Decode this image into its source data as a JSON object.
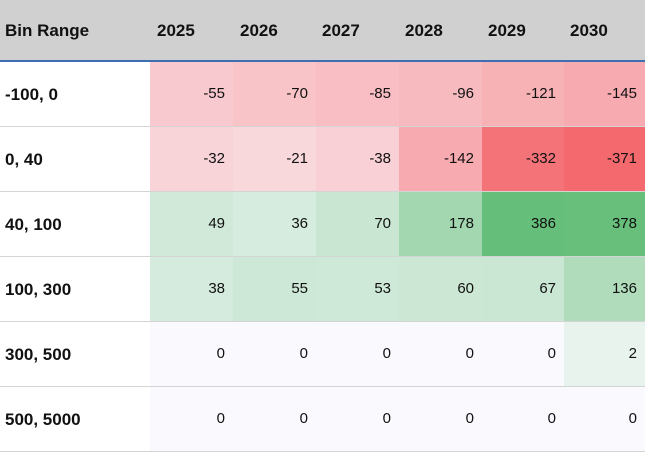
{
  "chart_data": {
    "type": "table",
    "columns": [
      "Bin Range",
      "2025",
      "2026",
      "2027",
      "2028",
      "2029",
      "2030"
    ],
    "rows": [
      {
        "label": "-100, 0",
        "values": [
          -55,
          -70,
          -85,
          -96,
          -121,
          -145
        ]
      },
      {
        "label": "0, 40",
        "values": [
          -32,
          -21,
          -38,
          -142,
          -332,
          -371
        ]
      },
      {
        "label": "40, 100",
        "values": [
          49,
          36,
          70,
          178,
          386,
          378
        ]
      },
      {
        "label": "100, 300",
        "values": [
          38,
          55,
          53,
          60,
          67,
          136
        ]
      },
      {
        "label": "300, 500",
        "values": [
          0,
          0,
          0,
          0,
          0,
          2
        ]
      },
      {
        "label": "500, 5000",
        "values": [
          0,
          0,
          0,
          0,
          0,
          0
        ]
      }
    ],
    "color_scale": {
      "negative": "#f4696e",
      "positive": "#5dbb72",
      "zero": "#fafafe"
    }
  }
}
